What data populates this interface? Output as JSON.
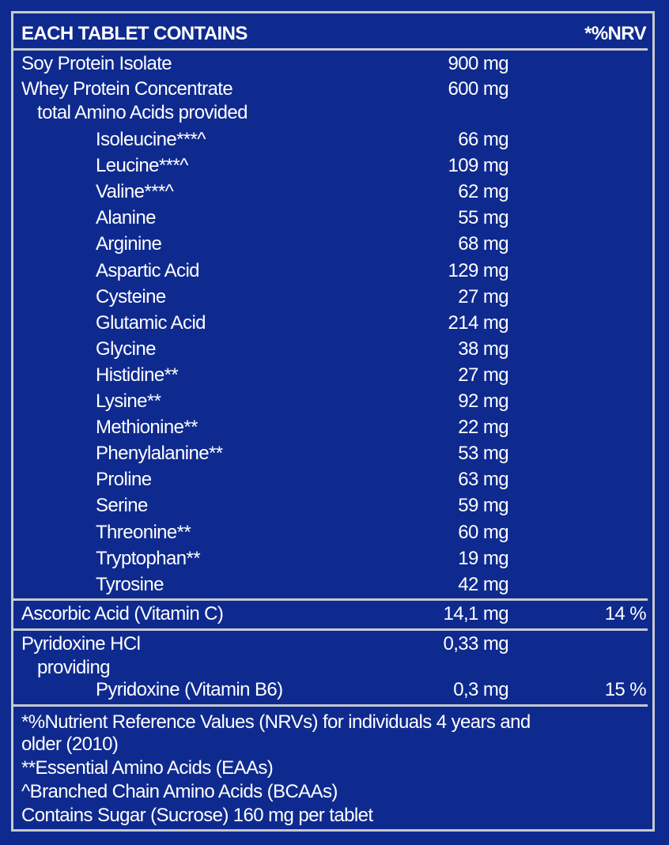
{
  "header": {
    "title": "EACH TABLET CONTAINS",
    "nrv_label": "*%NRV"
  },
  "rows_top": [
    {
      "name": "Soy Protein Isolate",
      "amount": "900 mg",
      "nrv": ""
    },
    {
      "name": "Whey Protein Concentrate",
      "amount": "600 mg",
      "nrv": ""
    },
    {
      "name": "total Amino Acids provided",
      "amount": "",
      "nrv": ""
    }
  ],
  "amino_acids": [
    {
      "name": "Isoleucine***^",
      "amount": "66 mg"
    },
    {
      "name": "Leucine***^",
      "amount": "109 mg"
    },
    {
      "name": "Valine***^",
      "amount": "62 mg"
    },
    {
      "name": "Alanine",
      "amount": "55 mg"
    },
    {
      "name": "Arginine",
      "amount": "68 mg"
    },
    {
      "name": "Aspartic Acid",
      "amount": "129 mg"
    },
    {
      "name": "Cysteine",
      "amount": "27 mg"
    },
    {
      "name": "Glutamic Acid",
      "amount": "214 mg"
    },
    {
      "name": "Glycine",
      "amount": "38 mg"
    },
    {
      "name": "Histidine**",
      "amount": "27 mg"
    },
    {
      "name": "Lysine**",
      "amount": "92 mg"
    },
    {
      "name": "Methionine**",
      "amount": "22 mg"
    },
    {
      "name": "Phenylalanine**",
      "amount": "53 mg"
    },
    {
      "name": "Proline",
      "amount": "63 mg"
    },
    {
      "name": "Serine",
      "amount": "59 mg"
    },
    {
      "name": "Threonine**",
      "amount": "60 mg"
    },
    {
      "name": "Tryptophan**",
      "amount": "19 mg"
    },
    {
      "name": "Tyrosine",
      "amount": "42 mg"
    }
  ],
  "vitamin_c": {
    "name": "Ascorbic Acid (Vitamin C)",
    "amount": "14,1 mg",
    "nrv": "14 %"
  },
  "pyridoxine": {
    "name": "Pyridoxine HCl",
    "amount": "0,33 mg",
    "providing": "providing",
    "sub_name": "Pyridoxine (Vitamin B6)",
    "sub_amount": "0,3 mg",
    "sub_nrv": "15 %"
  },
  "footnotes": {
    "nrv_note_1": "*%Nutrient Reference Values (NRVs) for individuals 4 years and",
    "nrv_note_2": "older (2010)",
    "eaa_note": "**Essential Amino Acids (EAAs)",
    "bcaa_note": "^Branched Chain Amino Acids (BCAAs)",
    "sugar_note": "Contains Sugar (Sucrose) 160 mg per tablet"
  },
  "colors": {
    "background": "#0f2a8f",
    "rule": "#c7c9cf",
    "text": "#ffffff"
  }
}
